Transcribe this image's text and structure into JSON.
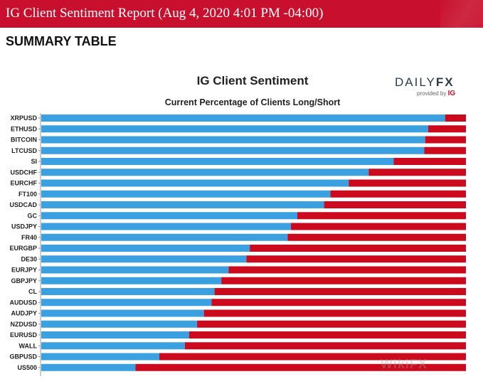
{
  "header": {
    "title": "IG Client Sentiment Report (Aug 4, 2020 4:01 PM -04:00)"
  },
  "section_heading": "SUMMARY TABLE",
  "logo": {
    "brand_left": "DAILY",
    "brand_right": "FX",
    "provided_by": "provided by",
    "ig": "IG"
  },
  "watermark": "WikiFX",
  "colors": {
    "banner": "#c8102e",
    "long": "#3aa0e0",
    "short": "#cc0a1e"
  },
  "chart_data": {
    "type": "bar",
    "orientation": "horizontal-stacked",
    "title": "IG Client Sentiment",
    "subtitle": "Current Percentage of Clients Long/Short",
    "categories": [
      "XRPUSD",
      "ETHUSD",
      "BITCOIN",
      "LTCUSD",
      "SI",
      "USDCHF",
      "EURCHF",
      "FT100",
      "USDCAD",
      "GC",
      "USDJPY",
      "FR40",
      "EURGBP",
      "DE30",
      "EURJPY",
      "GBPJPY",
      "CL",
      "AUDUSD",
      "AUDJPY",
      "NZDUSD",
      "EURUSD",
      "WALL",
      "GBPUSD",
      "US500"
    ],
    "series": [
      {
        "values": [
          95.1,
          91.1,
          90.4,
          90.2,
          83.0,
          77.1,
          72.4,
          68.1,
          66.6,
          60.3,
          58.8,
          58.0,
          49.1,
          48.3,
          44.1,
          42.4,
          40.8,
          40.1,
          38.3,
          36.7,
          34.8,
          33.8,
          27.8,
          22.2
        ]
      },
      {
        "values": [
          4.9,
          8.9,
          9.6,
          9.8,
          17.0,
          22.9,
          27.6,
          31.9,
          33.4,
          39.7,
          41.2,
          42.0,
          50.9,
          51.7,
          55.9,
          57.6,
          59.2,
          59.9,
          61.7,
          63.3,
          65.2,
          66.2,
          72.2,
          77.8
        ]
      }
    ],
    "xlim": [
      0,
      100
    ],
    "legend": "none",
    "grid": false
  }
}
